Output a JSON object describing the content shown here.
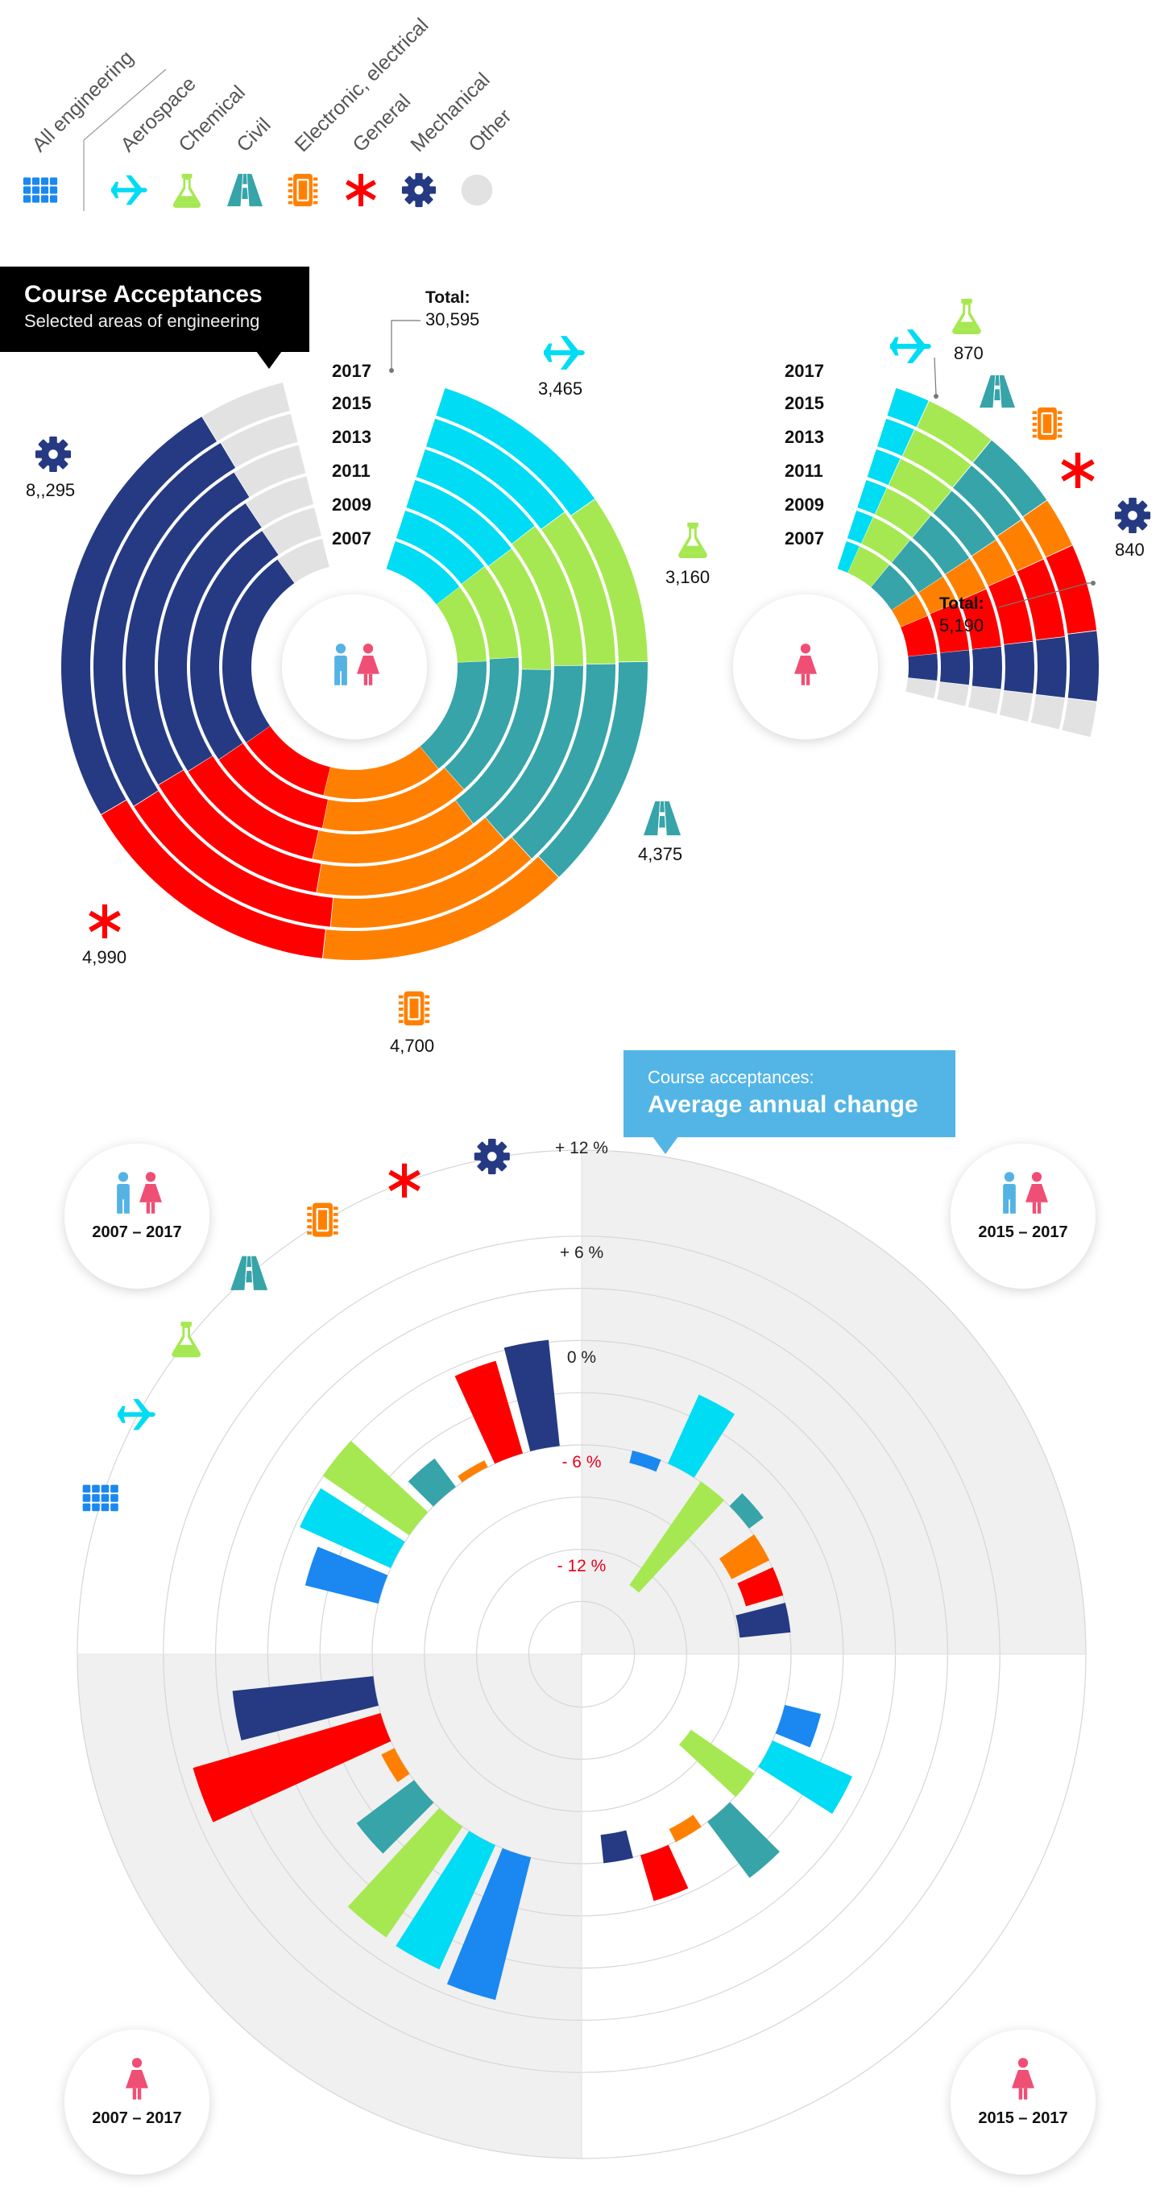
{
  "legend": {
    "items": [
      {
        "key": "all",
        "label": "All engineering",
        "icon": "grid-icon",
        "color": "#1a88f0"
      },
      {
        "key": "aero",
        "label": "Aerospace",
        "icon": "airplane-icon",
        "color": "#00dcf4"
      },
      {
        "key": "chem",
        "label": "Chemical",
        "icon": "flask-icon",
        "color": "#a6e851"
      },
      {
        "key": "civil",
        "label": "Civil",
        "icon": "road-icon",
        "color": "#36a4a9"
      },
      {
        "key": "elec",
        "label": "Electronic, electrical",
        "icon": "chip-icon",
        "color": "#ff8000"
      },
      {
        "key": "gen",
        "label": "General",
        "icon": "asterisk-icon",
        "color": "#ff0000"
      },
      {
        "key": "mech",
        "label": "Mechanical",
        "icon": "gear-icon",
        "color": "#253a82"
      },
      {
        "key": "other",
        "label": "Other",
        "icon": "dot-icon",
        "color": "#e2e2e2"
      }
    ]
  },
  "title": {
    "heading": "Course Acceptances",
    "subtitle": "Selected areas of engineering"
  },
  "avg_title": {
    "line1": "Course acceptances:",
    "line2": "Average annual change"
  },
  "chart_data": [
    {
      "type": "radial-stacked-bar",
      "id": "all-students",
      "group": "all students",
      "years": [
        "2017",
        "2015",
        "2013",
        "2011",
        "2009",
        "2007"
      ],
      "series": [
        {
          "name": "Aerospace",
          "latest_label": "3,465"
        },
        {
          "name": "Chemical",
          "latest_label": "3,160"
        },
        {
          "name": "Civil",
          "latest_label": "4,375"
        },
        {
          "name": "Electronic, electrical",
          "latest_label": "4,700"
        },
        {
          "name": "General",
          "latest_label": "4,990"
        },
        {
          "name": "Mechanical",
          "latest_label": "8,,295"
        }
      ],
      "total_label": "Total:",
      "total_value": "30,595",
      "values_by_year": {
        "2017": [
          3465,
          3160,
          4375,
          4700,
          4990,
          8295,
          1610
        ],
        "2015": [
          3200,
          3200,
          4300,
          4300,
          4700,
          8200,
          1500
        ],
        "2013": [
          2900,
          3200,
          4200,
          4300,
          4200,
          7600,
          1500
        ],
        "2011": [
          2700,
          2900,
          4000,
          3800,
          3500,
          6800,
          1500
        ],
        "2009": [
          2400,
          2400,
          3600,
          3700,
          3100,
          6300,
          1400
        ],
        "2007": [
          2100,
          2100,
          3200,
          3200,
          2500,
          5400,
          1300
        ]
      }
    },
    {
      "type": "radial-stacked-bar",
      "id": "women",
      "group": "women",
      "years": [
        "2017",
        "2015",
        "2013",
        "2011",
        "2009",
        "2007"
      ],
      "series": [
        {
          "name": "Aerospace",
          "latest_label": ""
        },
        {
          "name": "Chemical",
          "latest_label": "870"
        },
        {
          "name": "Civil",
          "latest_label": ""
        },
        {
          "name": "Electronic, electrical",
          "latest_label": ""
        },
        {
          "name": "General",
          "latest_label": ""
        },
        {
          "name": "Mechanical",
          "latest_label": "840"
        }
      ],
      "total_label": "Total:",
      "total_value": "5,190",
      "values_by_year": {
        "2017": [
          420,
          870,
          970,
          610,
          1050,
          840,
          430
        ],
        "2015": [
          380,
          830,
          920,
          560,
          1000,
          760,
          400
        ],
        "2013": [
          340,
          780,
          860,
          510,
          900,
          680,
          370
        ],
        "2011": [
          300,
          700,
          780,
          470,
          800,
          580,
          340
        ],
        "2009": [
          260,
          620,
          700,
          420,
          700,
          500,
          310
        ],
        "2007": [
          220,
          540,
          610,
          380,
          600,
          420,
          280
        ]
      }
    },
    {
      "type": "radial-bar",
      "id": "avg-annual-change",
      "unit": "%",
      "ticks": [
        "+ 12 %",
        "+ 6 %",
        "0 %",
        "- 6 %",
        "- 12 %"
      ],
      "tick_values": [
        12,
        6,
        0,
        -6,
        -12
      ],
      "range": [
        -18,
        12
      ],
      "categories": [
        "All engineering",
        "Aerospace",
        "Chemical",
        "Civil",
        "Electronic, electrical",
        "General",
        "Mechanical"
      ],
      "quadrants": [
        {
          "label": "2007 – 2017",
          "group": "all",
          "values": [
            4.3,
            5.7,
            6.0,
            2.0,
            0.4,
            5.5,
            6.1
          ]
        },
        {
          "label": "2015 – 2017",
          "group": "all",
          "values": [
            -0.7,
            4.3,
            -7.2,
            1.0,
            -2.4,
            -2.2,
            -2.9
          ]
        },
        {
          "label": "2007 – 2017",
          "group": "women",
          "values": [
            8.4,
            7.8,
            7.7,
            4.1,
            0.8,
            11.2,
            8.1
          ]
        },
        {
          "label": "2015 – 2017",
          "group": "women",
          "values": [
            2.1,
            5.0,
            -4.4,
            4.0,
            -0.8,
            2.7,
            -1.6
          ]
        }
      ]
    }
  ]
}
